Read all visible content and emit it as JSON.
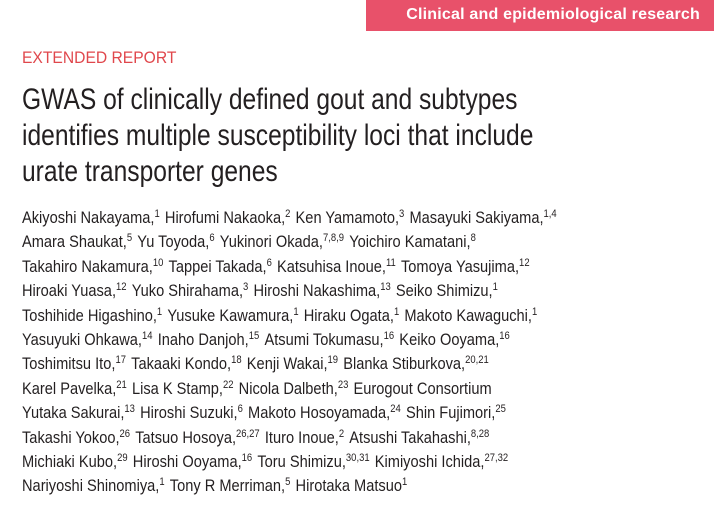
{
  "header": {
    "section": "Clinical and epidemiological research"
  },
  "article": {
    "type_label": "EXTENDED REPORT",
    "title_lines": [
      "GWAS of clinically defined gout and subtypes",
      "identifies multiple susceptibility loci that include",
      "urate transporter genes"
    ],
    "author_lines": [
      [
        {
          "name": "Akiyoshi Nakayama,",
          "sup": "1"
        },
        {
          "name": "Hirofumi Nakaoka,",
          "sup": "2"
        },
        {
          "name": "Ken Yamamoto,",
          "sup": "3"
        },
        {
          "name": "Masayuki Sakiyama,",
          "sup": "1,4"
        }
      ],
      [
        {
          "name": "Amara Shaukat,",
          "sup": "5"
        },
        {
          "name": "Yu Toyoda,",
          "sup": "6"
        },
        {
          "name": "Yukinori Okada,",
          "sup": "7,8,9"
        },
        {
          "name": "Yoichiro Kamatani,",
          "sup": "8"
        }
      ],
      [
        {
          "name": "Takahiro Nakamura,",
          "sup": "10"
        },
        {
          "name": "Tappei Takada,",
          "sup": "6"
        },
        {
          "name": "Katsuhisa Inoue,",
          "sup": "11"
        },
        {
          "name": "Tomoya Yasujima,",
          "sup": "12"
        }
      ],
      [
        {
          "name": "Hiroaki Yuasa,",
          "sup": "12"
        },
        {
          "name": "Yuko Shirahama,",
          "sup": "3"
        },
        {
          "name": "Hiroshi Nakashima,",
          "sup": "13"
        },
        {
          "name": "Seiko Shimizu,",
          "sup": "1"
        }
      ],
      [
        {
          "name": "Toshihide Higashino,",
          "sup": "1"
        },
        {
          "name": "Yusuke Kawamura,",
          "sup": "1"
        },
        {
          "name": "Hiraku Ogata,",
          "sup": "1"
        },
        {
          "name": "Makoto Kawaguchi,",
          "sup": "1"
        }
      ],
      [
        {
          "name": "Yasuyuki Ohkawa,",
          "sup": "14"
        },
        {
          "name": "Inaho Danjoh,",
          "sup": "15"
        },
        {
          "name": "Atsumi Tokumasu,",
          "sup": "16"
        },
        {
          "name": "Keiko Ooyama,",
          "sup": "16"
        }
      ],
      [
        {
          "name": "Toshimitsu Ito,",
          "sup": "17"
        },
        {
          "name": "Takaaki Kondo,",
          "sup": "18"
        },
        {
          "name": "Kenji Wakai,",
          "sup": "19"
        },
        {
          "name": "Blanka Stiburkova,",
          "sup": "20,21"
        }
      ],
      [
        {
          "name": "Karel Pavelka,",
          "sup": "21"
        },
        {
          "name": "Lisa K Stamp,",
          "sup": "22"
        },
        {
          "name": "Nicola Dalbeth,",
          "sup": "23"
        },
        {
          "name": "Eurogout Consortium"
        }
      ],
      [
        {
          "name": "Yutaka Sakurai,",
          "sup": "13"
        },
        {
          "name": "Hiroshi Suzuki,",
          "sup": "6"
        },
        {
          "name": "Makoto Hosoyamada,",
          "sup": "24"
        },
        {
          "name": "Shin Fujimori,",
          "sup": "25"
        }
      ],
      [
        {
          "name": "Takashi Yokoo,",
          "sup": "26"
        },
        {
          "name": "Tatsuo Hosoya,",
          "sup": "26,27"
        },
        {
          "name": "Ituro Inoue,",
          "sup": "2"
        },
        {
          "name": "Atsushi Takahashi,",
          "sup": "8,28"
        }
      ],
      [
        {
          "name": "Michiaki Kubo,",
          "sup": "29"
        },
        {
          "name": "Hiroshi Ooyama,",
          "sup": "16"
        },
        {
          "name": "Toru Shimizu,",
          "sup": "30,31"
        },
        {
          "name": "Kimiyoshi Ichida,",
          "sup": "27,32"
        }
      ],
      [
        {
          "name": "Nariyoshi Shinomiya,",
          "sup": "1"
        },
        {
          "name": "Tony R Merriman,",
          "sup": "5"
        },
        {
          "name": "Hirotaka Matsuo",
          "sup": "1"
        }
      ]
    ]
  }
}
